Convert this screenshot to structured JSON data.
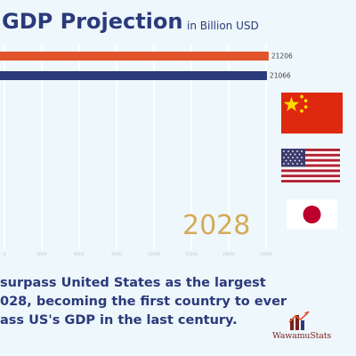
{
  "header": {
    "title": "GDP Projection",
    "unit": "in Billion USD"
  },
  "chart_data": {
    "type": "bar",
    "orientation": "horizontal",
    "title": "GDP Projection",
    "unit": "in Billion USD",
    "categories": [
      "China",
      "United States",
      "Japan"
    ],
    "values": [
      21206,
      21066,
      null
    ],
    "value_labels": [
      "21206",
      "21066",
      ""
    ],
    "bar_colors": [
      "#e1542a",
      "#2b3a7b",
      "#d9d9d9"
    ],
    "xlim": [
      0,
      25000
    ],
    "x_ticks": [
      0,
      3000,
      6000,
      9000,
      12000,
      15000,
      18000,
      21000
    ],
    "grid": true,
    "legend": "none"
  },
  "year_label": "2028",
  "caption": {
    "lines": [
      "surpass United States as the largest",
      "028, becoming the first country to ever",
      "ass US's GDP in the last century."
    ]
  },
  "flags": {
    "china": "flag-china-icon",
    "usa": "flag-usa-icon",
    "japan": "flag-japan-icon"
  },
  "brand": {
    "name": "WawamuStats"
  },
  "colors": {
    "title": "#2b3a7b",
    "china_bar": "#e1542a",
    "us_bar": "#2b3a7b",
    "year": "#d6aa5a",
    "brand": "#7a1f1f",
    "background": "#eef7fb"
  }
}
